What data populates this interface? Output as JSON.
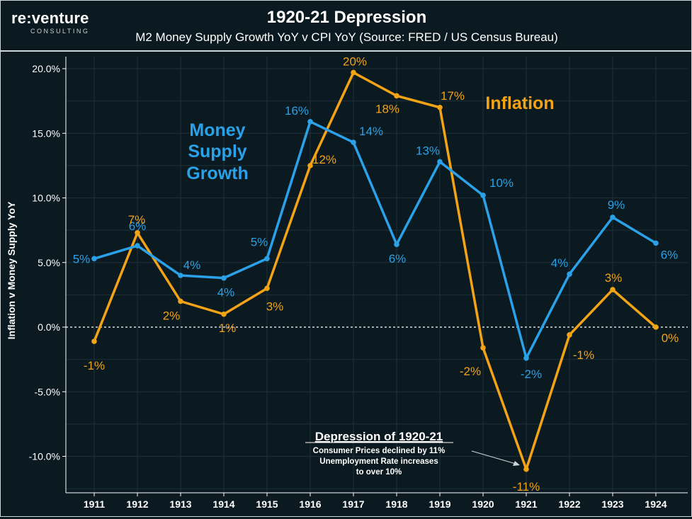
{
  "brand": {
    "name": "re:venture",
    "sub": "CONSULTING"
  },
  "title": "1920-21 Depression",
  "subtitle": "M2 Money Supply Growth YoY v CPI YoY (Source: FRED / US Census Bureau)",
  "colors": {
    "money": "#2aa1e8",
    "inflation": "#f3a316",
    "background": "#0b1a20",
    "grid": "#1e3039",
    "axis": "#ffffff"
  },
  "chart_data": {
    "type": "line",
    "x": [
      "1911",
      "1912",
      "1913",
      "1914",
      "1915",
      "1916",
      "1917",
      "1918",
      "1919",
      "1920",
      "1921",
      "1922",
      "1923",
      "1924"
    ],
    "ylabel": "Inflation v Money Supply YoY",
    "ylim": [
      -12.5,
      20.5
    ],
    "yticks": [
      -10,
      -5,
      0,
      5,
      10,
      15,
      20
    ],
    "ytick_labels": [
      "-10.0%",
      "-5.0%",
      "0.0%",
      "5.0%",
      "10.0%",
      "15.0%",
      "20.0%"
    ],
    "grid": true,
    "zero_line": "dashed",
    "series": [
      {
        "name": "Money Supply Growth",
        "color": "#2aa1e8",
        "values": [
          5.3,
          6.3,
          4.0,
          3.8,
          5.3,
          15.9,
          14.3,
          6.4,
          12.8,
          10.2,
          -2.4,
          4.1,
          8.5,
          6.5
        ],
        "labels": [
          "5%",
          "6%",
          "4%",
          "4%",
          "5%",
          "16%",
          "14%",
          "6%",
          "13%",
          "10%",
          "-2%",
          "4%",
          "9%",
          "6%"
        ]
      },
      {
        "name": "Inflation",
        "color": "#f3a316",
        "values": [
          -1.1,
          7.3,
          2.0,
          1.0,
          3.0,
          12.5,
          19.7,
          17.9,
          17.0,
          -1.6,
          -11.0,
          -0.6,
          2.9,
          0.0
        ],
        "labels": [
          "-1%",
          "7%",
          "2%",
          "1%",
          "3%",
          "12%",
          "20%",
          "18%",
          "17%",
          "-2%",
          "-11%",
          "-1%",
          "3%",
          "0%"
        ]
      }
    ],
    "annotations": {
      "money_legend": [
        "Money",
        "Supply",
        "Growth"
      ],
      "inflation_legend": "Inflation",
      "depression_title": "Depression of 1920-21",
      "depression_lines": [
        "Consumer Prices declined by 11%",
        "Unemployment Rate increases",
        "to over 10%"
      ]
    }
  }
}
